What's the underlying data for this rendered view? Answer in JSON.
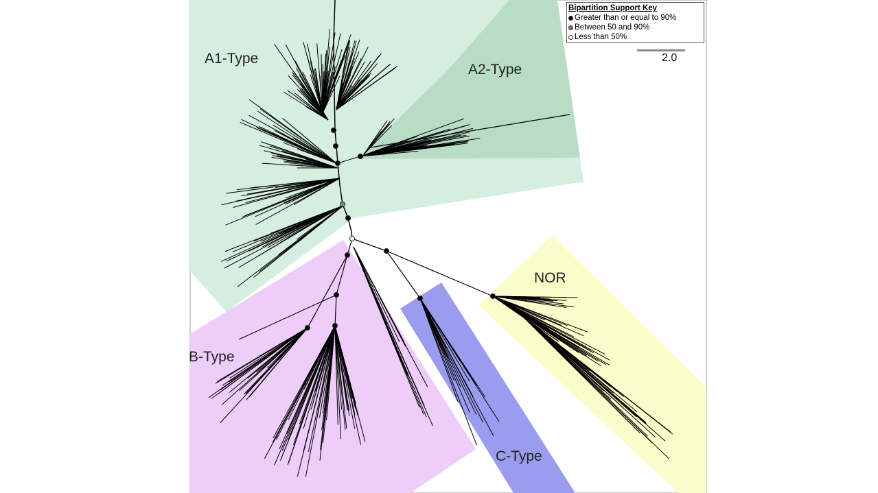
{
  "clades": [
    {
      "name": "A1-Type",
      "color": "#d6eee0"
    },
    {
      "name": "A2-Type",
      "color": "#b9dcc5"
    },
    {
      "name": "B-Type",
      "color": "#eecdfb"
    },
    {
      "name": "C-Type",
      "color": "#9a9cf0"
    },
    {
      "name": "NOR",
      "color": "#fbfcc9"
    }
  ],
  "legend": {
    "title": "Bipartition Support Key",
    "items": [
      {
        "label": "Greater than or equal to 90%",
        "color": "#000000"
      },
      {
        "label": "Between 50 and 90%",
        "color": "#777777"
      },
      {
        "label": "Less than 50%",
        "color": "#ffffff"
      }
    ]
  },
  "scale_bar": {
    "label": "2.0"
  }
}
